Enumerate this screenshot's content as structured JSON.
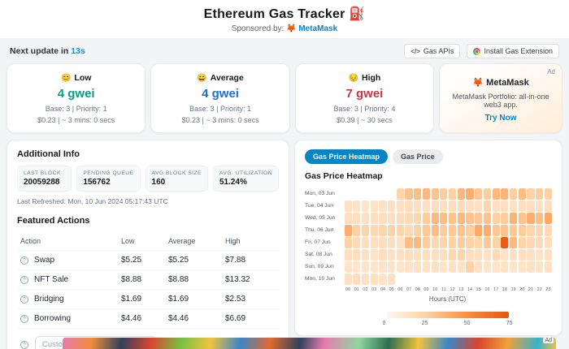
{
  "header": {
    "title": "Ethereum Gas Tracker",
    "title_emoji": "⛽",
    "sponsored_prefix": "Sponsored by:",
    "sponsor_icon": "🦊",
    "sponsor_name": "MetaMask"
  },
  "topbar": {
    "next_update_prefix": "Next update in ",
    "countdown": "13s",
    "gas_apis_icon": "</>",
    "gas_apis_label": "Gas APIs",
    "install_label": "Install Gas Extension"
  },
  "gas_cards": [
    {
      "tier": "Low",
      "emoji": "😊",
      "gwei": "4 gwei",
      "color": "#00a186",
      "base_priority": "Base: 3 | Priority: 1",
      "cost_time": "$0.23 | ~ 3 mins: 0 secs"
    },
    {
      "tier": "Average",
      "emoji": "😄",
      "gwei": "4 gwei",
      "color": "#1a6fd4",
      "base_priority": "Base: 3 | Priority: 1",
      "cost_time": "$0.23 | ~ 3 mins: 0 secs"
    },
    {
      "tier": "High",
      "emoji": "😔",
      "gwei": "7 gwei",
      "color": "#cc3344",
      "base_priority": "Base: 3 | Priority: 4",
      "cost_time": "$0.39 | ~ 30 secs"
    }
  ],
  "ad_card": {
    "ad_label": "Ad",
    "brand_icon": "🦊",
    "brand": "MetaMask",
    "description": "MetaMask Portfolio: all-in-one web3 app.",
    "cta": "Try Now"
  },
  "additional_info": {
    "title": "Additional Info",
    "stats": [
      {
        "label": "LAST BLOCK",
        "value": "20059288"
      },
      {
        "label": "PENDING QUEUE",
        "value": "156762"
      },
      {
        "label": "AVG BLOCK SIZE",
        "value": "160"
      },
      {
        "label": "AVG. UTILIZATION",
        "value": "51.24%"
      }
    ],
    "last_refreshed": "Last Refreshed: Mon, 10 Jun 2024 05:17:43 UTC"
  },
  "featured_actions": {
    "title": "Featured Actions",
    "columns": [
      "Action",
      "Low",
      "Average",
      "High"
    ],
    "rows": [
      {
        "action": "Swap",
        "low": "$5.25",
        "average": "$5.25",
        "high": "$7.88"
      },
      {
        "action": "NFT Sale",
        "low": "$8.88",
        "average": "$8.88",
        "high": "$13.32"
      },
      {
        "action": "Bridging",
        "low": "$1.69",
        "average": "$1.69",
        "high": "$2.53"
      },
      {
        "action": "Borrowing",
        "low": "$4.46",
        "average": "$4.46",
        "high": "$6.69"
      }
    ],
    "custom_input_placeholder": "Custom Gas Limit"
  },
  "heatmap_panel": {
    "tabs": [
      {
        "label": "Gas Price Heatmap",
        "active": true
      },
      {
        "label": "Gas Price",
        "active": false
      }
    ],
    "title": "Gas Price Heatmap"
  },
  "chart_data": {
    "type": "heatmap",
    "title": "Gas Price Heatmap",
    "xlabel": "Hours (UTC)",
    "x": [
      "00",
      "01",
      "02",
      "03",
      "04",
      "05",
      "06",
      "07",
      "08",
      "09",
      "10",
      "11",
      "12",
      "13",
      "14",
      "15",
      "16",
      "17",
      "18",
      "19",
      "20",
      "21",
      "22",
      "23"
    ],
    "y": [
      "Mon, 03 Jun",
      "Tue, 04 Jun",
      "Wed, 05 Jun",
      "Thu, 06 Jun",
      "Fri, 07 Jun",
      "Sat, 08 Jun",
      "Sun, 09 Jun",
      "Mon, 10 Jun"
    ],
    "values": [
      [
        null,
        null,
        null,
        null,
        null,
        null,
        22,
        30,
        32,
        34,
        30,
        26,
        25,
        35,
        38,
        28,
        26,
        34,
        36,
        26,
        32,
        24,
        26,
        24
      ],
      [
        14,
        13,
        12,
        13,
        14,
        15,
        14,
        16,
        15,
        14,
        16,
        15,
        16,
        18,
        15,
        14,
        22,
        15,
        16,
        14,
        15,
        16,
        14,
        16
      ],
      [
        16,
        15,
        14,
        15,
        16,
        15,
        17,
        18,
        20,
        26,
        34,
        32,
        30,
        34,
        30,
        28,
        30,
        24,
        26,
        36,
        30,
        38,
        32,
        40
      ],
      [
        38,
        24,
        22,
        20,
        22,
        24,
        22,
        20,
        24,
        28,
        32,
        26,
        28,
        30,
        26,
        40,
        38,
        28,
        30,
        28,
        26,
        22,
        20,
        18
      ],
      [
        24,
        18,
        16,
        15,
        16,
        15,
        14,
        32,
        34,
        26,
        20,
        22,
        24,
        26,
        24,
        22,
        28,
        24,
        72,
        34,
        22,
        20,
        18,
        16
      ],
      [
        16,
        15,
        14,
        13,
        16,
        14,
        15,
        16,
        15,
        14,
        15,
        16,
        20,
        22,
        16,
        15,
        14,
        18,
        13,
        14,
        15,
        14,
        13,
        14
      ],
      [
        12,
        11,
        12,
        11,
        12,
        13,
        12,
        13,
        14,
        13,
        14,
        13,
        14,
        13,
        24,
        14,
        13,
        12,
        13,
        12,
        13,
        14,
        13,
        14
      ],
      [
        15,
        16,
        14,
        15,
        13,
        14,
        null,
        null,
        null,
        null,
        null,
        null,
        null,
        null,
        null,
        null,
        null,
        null,
        null,
        null,
        null,
        null,
        null,
        null
      ]
    ],
    "legend": {
      "ticks": [
        "0",
        "25",
        "50",
        "75"
      ],
      "domain": [
        0,
        25,
        50,
        75
      ],
      "colors": [
        "#fff7f0",
        "#fdd0a2",
        "#fd8d3c",
        "#e6550d"
      ]
    }
  },
  "bottom_ad": {
    "ad_label": "Ad"
  }
}
